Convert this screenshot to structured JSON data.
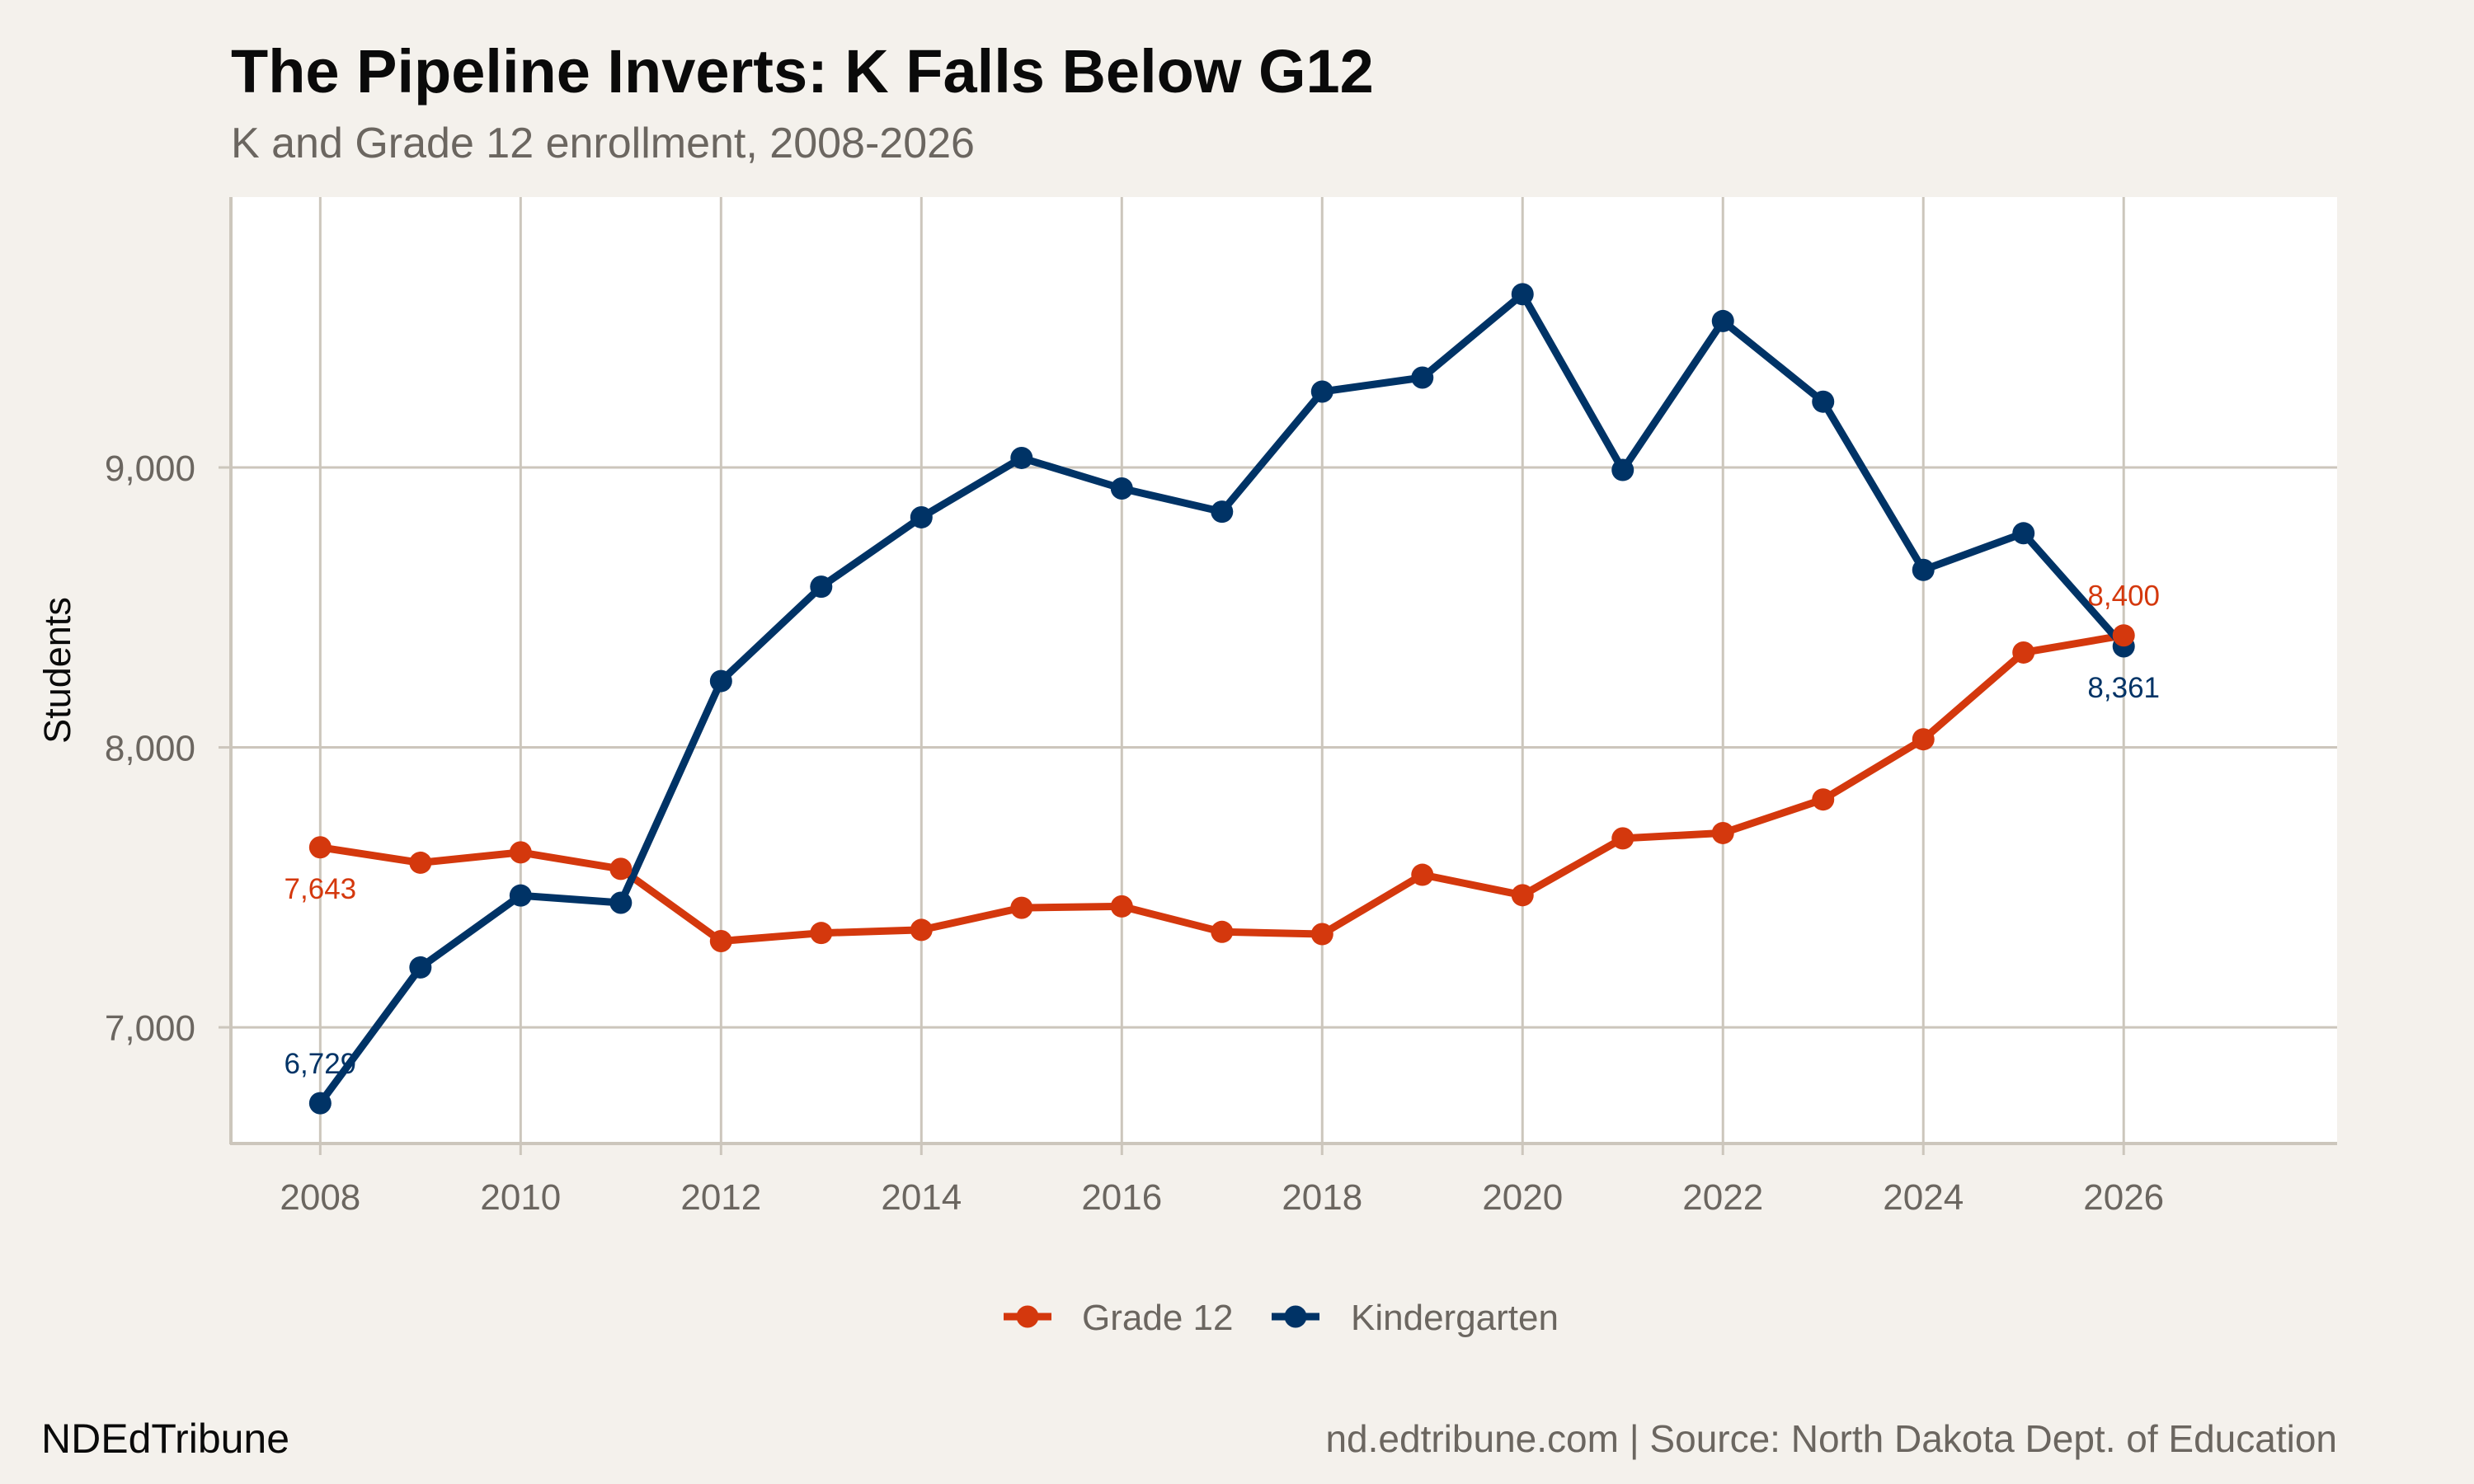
{
  "header": {
    "title": "The Pipeline Inverts: K Falls Below G12",
    "subtitle": "K and Grade 12 enrollment, 2008-2026"
  },
  "footer": {
    "brand": "NDEdTribune",
    "source": "nd.edtribune.com | Source: North Dakota Dept. of Education"
  },
  "colors": {
    "background": "#f4f1ec",
    "panel": "#ffffff",
    "grid": "#ccc6bc",
    "grade12": "#d4380d",
    "kindergarten": "#003366",
    "muted_text": "#6b6660",
    "dark_text": "#0a0a0a"
  },
  "chart_data": {
    "type": "line",
    "title": "The Pipeline Inverts: K Falls Below G12",
    "subtitle": "K and Grade 12 enrollment, 2008-2026",
    "xlabel": "",
    "ylabel": "Students",
    "x": [
      2008,
      2009,
      2010,
      2011,
      2012,
      2013,
      2014,
      2015,
      2016,
      2017,
      2018,
      2019,
      2020,
      2021,
      2022,
      2023,
      2024,
      2025,
      2026
    ],
    "series": [
      {
        "name": "Grade 12",
        "color": "#d4380d",
        "values": [
          7643,
          7588,
          7625,
          7566,
          7308,
          7337,
          7348,
          7427,
          7432,
          7341,
          7333,
          7545,
          7472,
          7675,
          7694,
          7814,
          8029,
          8339,
          8400
        ]
      },
      {
        "name": "Kindergarten",
        "color": "#003366",
        "values": [
          6729,
          7214,
          7471,
          7445,
          8237,
          8574,
          8822,
          9034,
          8925,
          8842,
          9271,
          9321,
          9619,
          8991,
          9523,
          9235,
          8634,
          8765,
          8361
        ]
      }
    ],
    "annotations": [
      {
        "series": "Grade 12",
        "x": 2008,
        "text": "7,643",
        "position": "below"
      },
      {
        "series": "Kindergarten",
        "x": 2008,
        "text": "6,729",
        "position": "above"
      },
      {
        "series": "Grade 12",
        "x": 2026,
        "text": "8,400",
        "position": "above"
      },
      {
        "series": "Kindergarten",
        "x": 2026,
        "text": "8,361",
        "position": "below"
      }
    ],
    "xticks": [
      2008,
      2010,
      2012,
      2014,
      2016,
      2018,
      2020,
      2022,
      2024,
      2026
    ],
    "xtick_labels": [
      "2008",
      "2010",
      "2012",
      "2014",
      "2016",
      "2018",
      "2020",
      "2022",
      "2024",
      "2026"
    ],
    "yticks": [
      7000,
      8000,
      9000
    ],
    "ytick_labels": [
      "7,000",
      "8,000",
      "9,000"
    ],
    "xlim": [
      2007.1,
      2028.13
    ],
    "ylim": [
      6585,
      9966
    ],
    "grid": true,
    "legend_position": "bottom",
    "legend": [
      "Grade 12",
      "Kindergarten"
    ]
  }
}
